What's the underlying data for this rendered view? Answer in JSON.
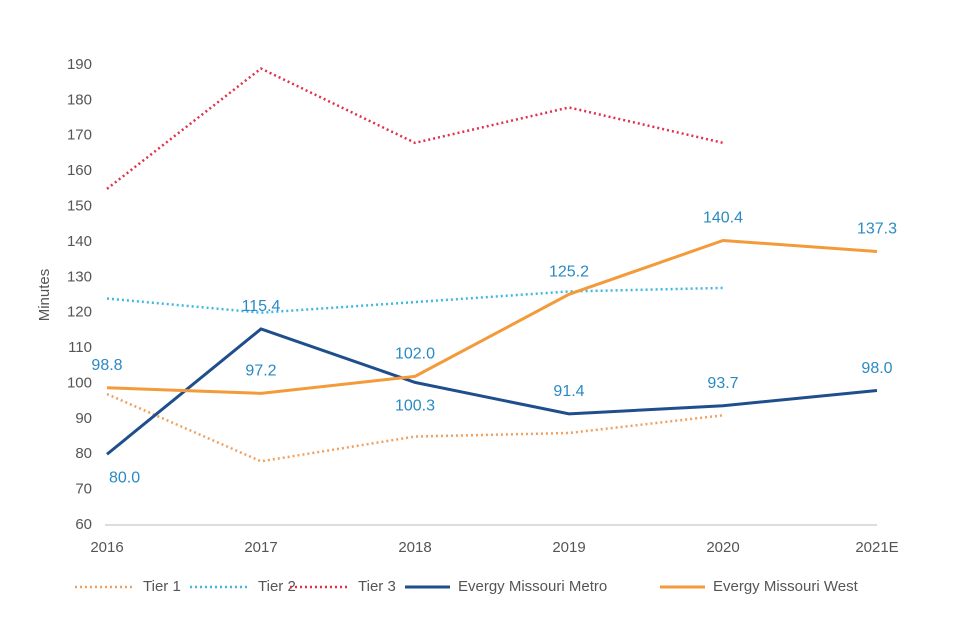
{
  "chart_data": {
    "type": "line",
    "y_label": "Minutes",
    "categories": [
      "2016",
      "2017",
      "2018",
      "2019",
      "2020",
      "2021E"
    ],
    "ylim": [
      60,
      190
    ],
    "yticks": [
      60,
      70,
      80,
      90,
      100,
      110,
      120,
      130,
      140,
      150,
      160,
      170,
      180,
      190
    ],
    "series": [
      {
        "name": "Tier 1",
        "color": "#f0a060",
        "dashed": true,
        "values": [
          97,
          78,
          85,
          86,
          91,
          null
        ]
      },
      {
        "name": "Tier 2",
        "color": "#40b8e0",
        "dashed": true,
        "values": [
          124,
          120,
          123,
          126,
          127,
          null
        ]
      },
      {
        "name": "Tier 3",
        "color": "#e0304a",
        "dashed": true,
        "values": [
          155,
          189,
          168,
          178,
          168,
          null
        ]
      },
      {
        "name": "Evergy Missouri Metro",
        "color": "#1f4e8c",
        "dashed": false,
        "values": [
          80.0,
          115.4,
          100.3,
          91.4,
          93.7,
          98.0
        ],
        "value_labels": [
          "80.0",
          "115.4",
          "100.3",
          "91.4",
          "93.7",
          "98.0"
        ]
      },
      {
        "name": "Evergy Missouri West",
        "color": "#f39a3a",
        "dashed": false,
        "values": [
          98.8,
          97.2,
          102.0,
          125.2,
          140.4,
          137.3
        ],
        "value_labels": [
          "98.8",
          "97.2",
          "102.0",
          "125.2",
          "140.4",
          "137.3"
        ]
      }
    ]
  }
}
